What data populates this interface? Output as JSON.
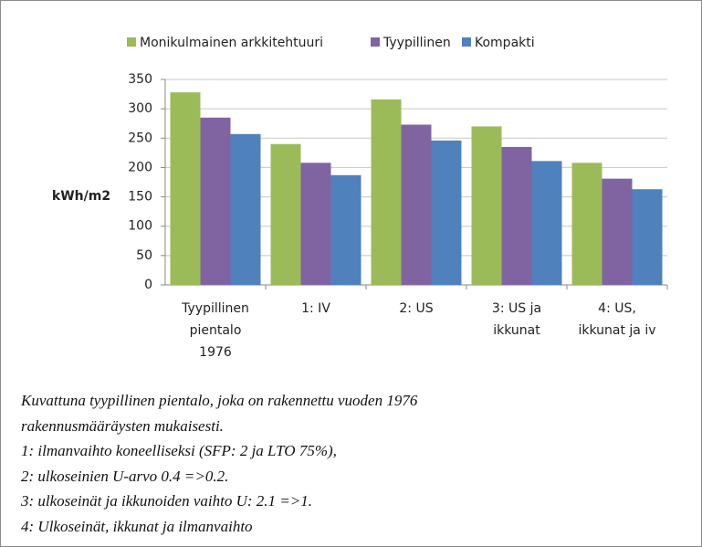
{
  "chart_data": {
    "type": "bar",
    "ylabel": "kWh/m2",
    "categories": [
      [
        "Tyypillinen",
        "pientalo",
        "1976"
      ],
      [
        "1: IV"
      ],
      [
        "2: US"
      ],
      [
        "3: US ja",
        "ikkunat"
      ],
      [
        "4: US,",
        "ikkunat ja iv"
      ]
    ],
    "series": [
      {
        "name": "Monikulmainen arkkitehtuuri",
        "color": "#9bbb59",
        "values": [
          328,
          240,
          316,
          270,
          208
        ]
      },
      {
        "name": "Tyypillinen",
        "color": "#8064a2",
        "values": [
          285,
          208,
          273,
          235,
          181
        ]
      },
      {
        "name": "Kompakti",
        "color": "#4f81bd",
        "values": [
          257,
          187,
          246,
          211,
          163
        ]
      }
    ],
    "ylim": [
      0,
      350
    ],
    "yticks": [
      0,
      50,
      100,
      150,
      200,
      250,
      300,
      350
    ],
    "grid": true,
    "legend": "top"
  },
  "caption": [
    "Kuvattuna tyypillinen pientalo, joka on rakennettu vuoden 1976",
    "rakennusmääräysten mukaisesti.",
    "1: ilmanvaihto koneelliseksi (SFP: 2 ja LTO 75%),",
    "2: ulkoseinien U-arvo 0.4 =>0.2.",
    "3: ulkoseinät ja ikkunoiden vaihto U: 2.1 =>1.",
    "4: Ulkoseinät, ikkunat ja ilmanvaihto"
  ]
}
